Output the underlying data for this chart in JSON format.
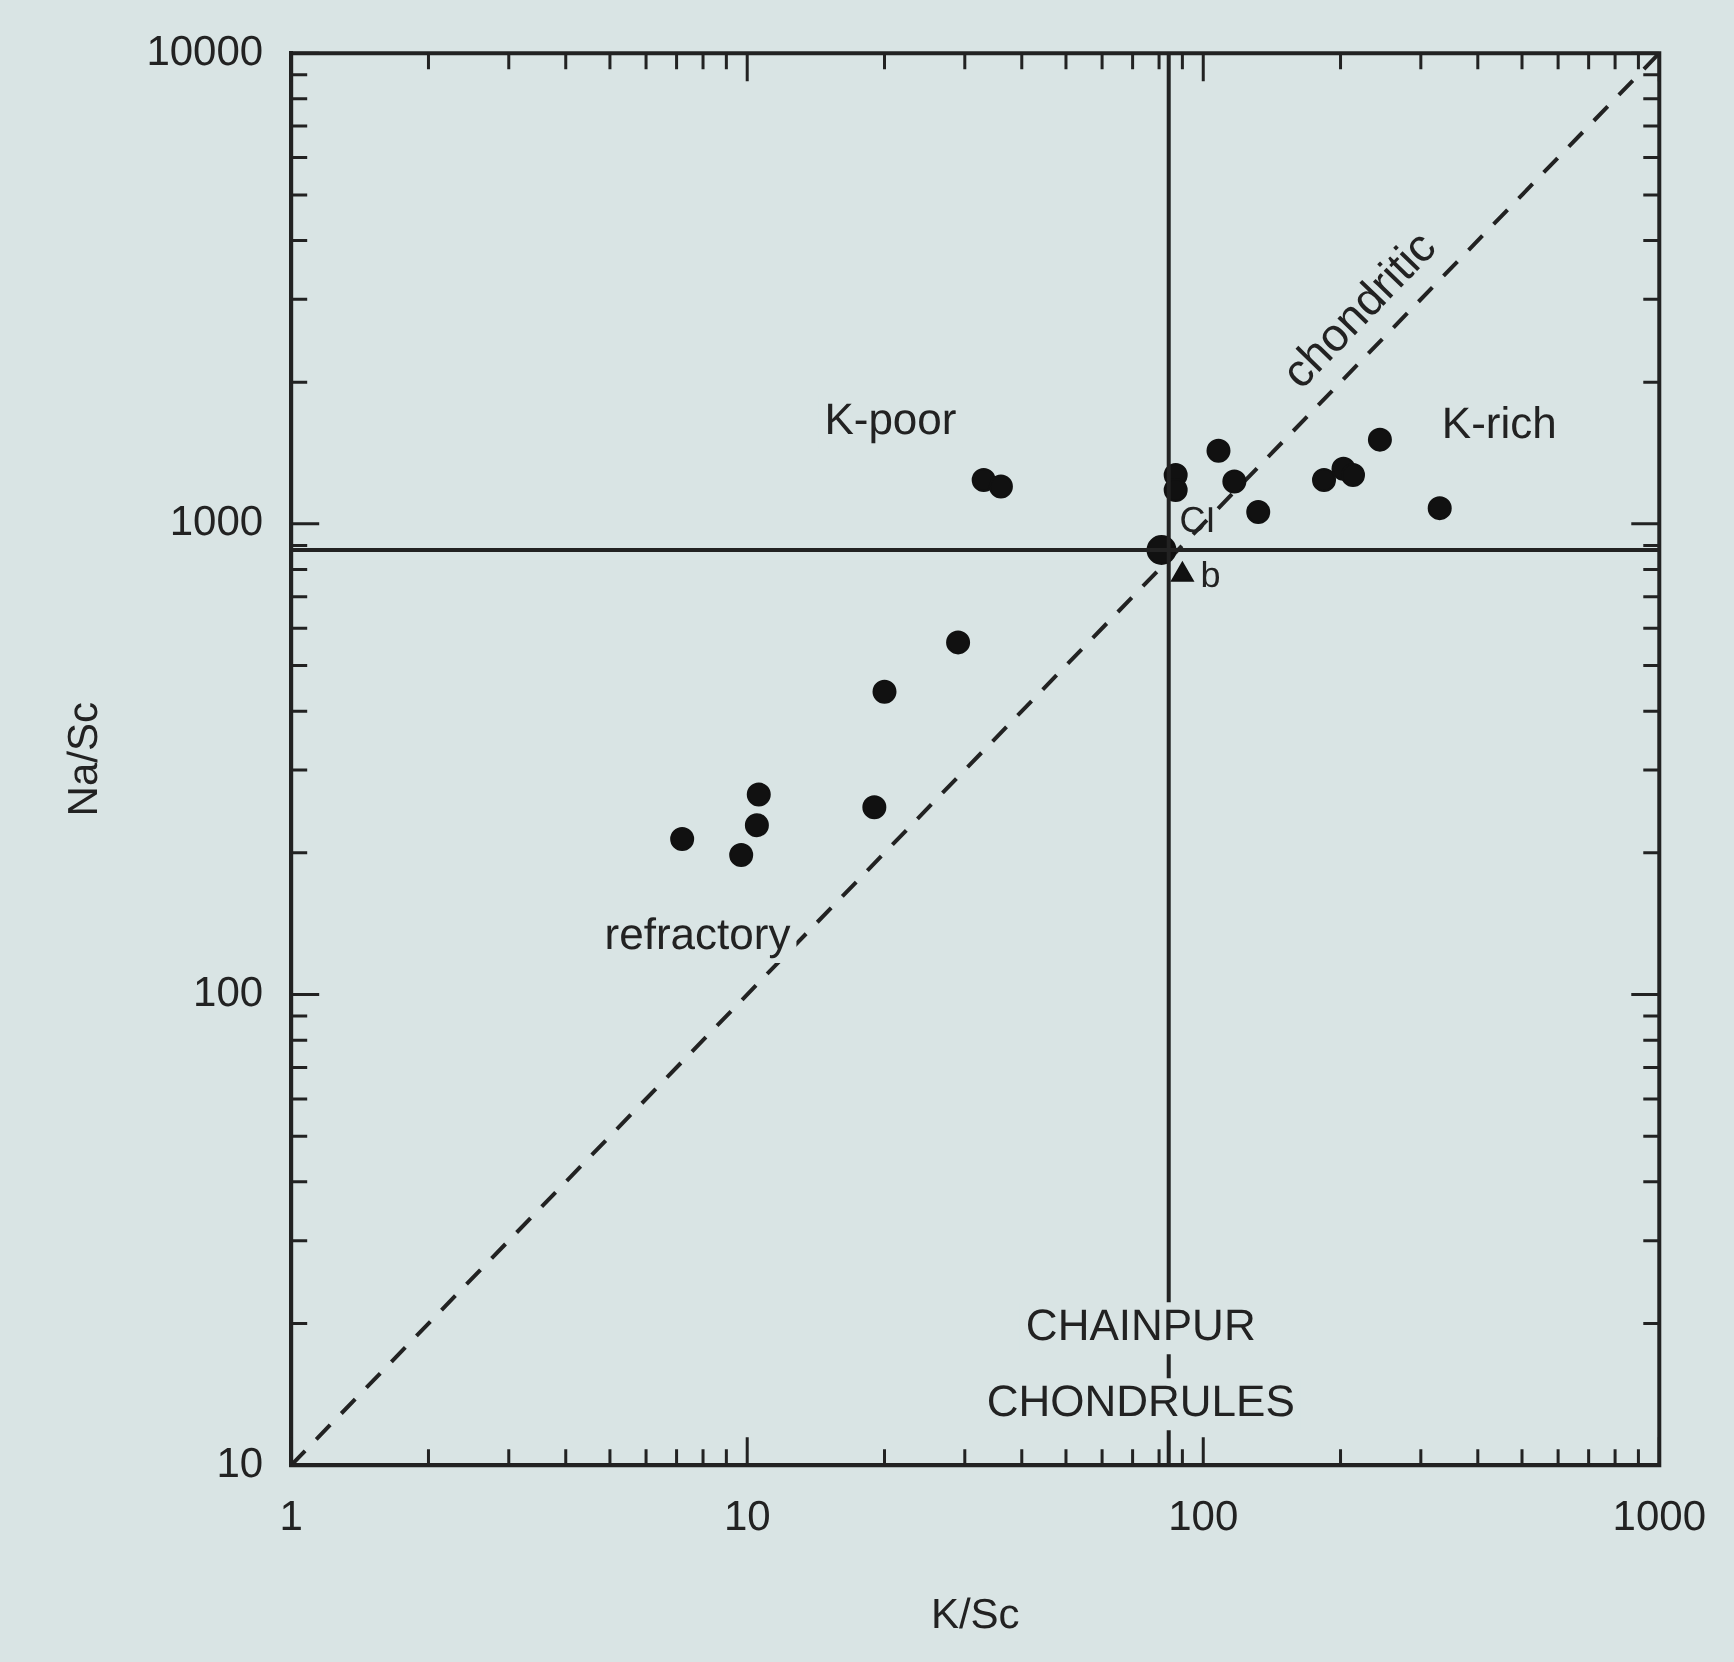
{
  "chart_data": {
    "type": "scatter",
    "xlabel": "K/Sc",
    "ylabel": "Na/Sc",
    "log": "xy",
    "grid": false,
    "legend": false,
    "xlim": [
      1,
      1000
    ],
    "ylim": [
      10,
      10000
    ],
    "xticks": [
      1,
      {
        "value": 2,
        "label": null
      },
      {
        "value": 3,
        "label": null
      },
      {
        "value": 4,
        "label": null
      },
      {
        "value": 5,
        "label": null
      },
      {
        "value": 6,
        "label": null
      },
      {
        "value": 7,
        "label": null
      },
      {
        "value": 8,
        "label": null
      },
      {
        "value": 9,
        "label": null
      },
      10,
      {
        "value": 20,
        "label": null
      },
      {
        "value": 30,
        "label": null
      },
      {
        "value": 40,
        "label": null
      },
      {
        "value": 50,
        "label": null
      },
      {
        "value": 60,
        "label": null
      },
      {
        "value": 70,
        "label": null
      },
      {
        "value": 80,
        "label": null
      },
      {
        "value": 90,
        "label": null
      },
      100,
      {
        "value": 200,
        "label": null
      },
      {
        "value": 300,
        "label": null
      },
      {
        "value": 400,
        "label": null
      },
      {
        "value": 500,
        "label": null
      },
      {
        "value": 600,
        "label": null
      },
      {
        "value": 700,
        "label": null
      },
      {
        "value": 800,
        "label": null
      },
      {
        "value": 900,
        "label": null
      },
      1000
    ],
    "yticks": [
      10,
      {
        "value": 20,
        "label": null
      },
      {
        "value": 30,
        "label": null
      },
      {
        "value": 40,
        "label": null
      },
      {
        "value": 50,
        "label": null
      },
      {
        "value": 60,
        "label": null
      },
      {
        "value": 70,
        "label": null
      },
      {
        "value": 80,
        "label": null
      },
      {
        "value": 90,
        "label": null
      },
      100,
      {
        "value": 200,
        "label": null
      },
      {
        "value": 300,
        "label": null
      },
      {
        "value": 400,
        "label": null
      },
      {
        "value": 500,
        "label": null
      },
      {
        "value": 600,
        "label": null
      },
      {
        "value": 700,
        "label": null
      },
      {
        "value": 800,
        "label": null
      },
      {
        "value": 900,
        "label": null
      },
      1000,
      {
        "value": 2000,
        "label": null
      },
      {
        "value": 3000,
        "label": null
      },
      {
        "value": 4000,
        "label": null
      },
      {
        "value": 5000,
        "label": null
      },
      {
        "value": 6000,
        "label": null
      },
      {
        "value": 7000,
        "label": null
      },
      {
        "value": 8000,
        "label": null
      },
      {
        "value": 9000,
        "label": null
      },
      10000
    ],
    "series": [
      {
        "marker": "circle",
        "color": "#111111",
        "x": [
          33,
          36,
          87,
          87,
          108,
          117,
          132,
          184,
          203,
          213,
          244,
          330,
          29,
          20,
          19,
          10.6,
          10.5,
          9.7,
          7.2
        ],
        "values": [
          1240,
          1200,
          1270,
          1180,
          1430,
          1230,
          1060,
          1240,
          1310,
          1270,
          1510,
          1080,
          560,
          440,
          250,
          266,
          229,
          198,
          214
        ]
      },
      {
        "name": "CI",
        "marker": "circle",
        "color": "#111111",
        "x": [
          81
        ],
        "values": [
          880
        ]
      },
      {
        "name": "b",
        "marker": "triangle",
        "color": "#111111",
        "x": [
          90
        ],
        "values": [
          780
        ]
      },
      {
        "type": "line",
        "name": "chondritic",
        "marker": "none",
        "line_style": "dashed",
        "color": "#222222",
        "x": [
          1,
          1000
        ],
        "values": [
          10,
          10000
        ]
      }
    ],
    "ref_lines": [
      {
        "axis": "x",
        "value": 84,
        "color": "#222222"
      },
      {
        "axis": "y",
        "value": 880,
        "color": "#222222"
      }
    ],
    "annotations": [
      "K-poor",
      "K-rich",
      "refractory",
      "CHAINPUR\nCHONDRULES"
    ]
  }
}
